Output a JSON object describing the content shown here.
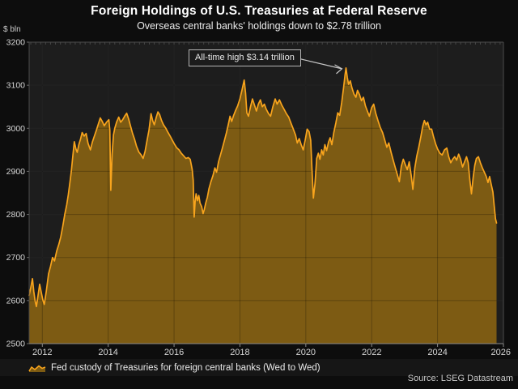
{
  "header": {
    "title": "Foreign Holdings of U.S. Treasuries at Federal Reserve",
    "subtitle": "Overseas central banks' holdings down to $2.78 trillion"
  },
  "legend": {
    "label": "Fed custody of Treasuries for foreign central banks (Wed to Wed)"
  },
  "source": "Source: LSEG Datastream",
  "chart_data": {
    "type": "area",
    "title": "Foreign Holdings of U.S. Treasuries at Federal Reserve",
    "subtitle": "Overseas central banks' holdings down to $2.78 trillion",
    "ylabel": "$ bln",
    "xlabel": "",
    "x_range": [
      2011.6,
      2026.0
    ],
    "y_range": [
      2500,
      3200
    ],
    "x_ticks": [
      2012,
      2014,
      2016,
      2018,
      2020,
      2022,
      2024,
      2026
    ],
    "y_ticks": [
      2500,
      2600,
      2700,
      2800,
      2900,
      3000,
      3100,
      3200
    ],
    "grid": true,
    "legend_position": "bottom",
    "annotation": {
      "text": "All-time high $3.14 trillion",
      "target_x": 2021.22,
      "target_y": 3140
    },
    "colors": {
      "line": "#f8a41d",
      "fill": "#7d5b13",
      "plot_bg": "#1d1d1d",
      "page_bg": "#0d0d0d",
      "grid": "#2e2e2e",
      "grid_overlay": "rgba(0,0,0,0.25)",
      "spine": "#4a4a4a",
      "axis": "#8a8a8a",
      "tick_text": "#d6d6d6",
      "arrow": "#c6c6c6"
    },
    "series": [
      {
        "name": "Fed custody of Treasuries for foreign central banks (Wed to Wed)",
        "points": [
          [
            2011.6,
            2612
          ],
          [
            2011.65,
            2630
          ],
          [
            2011.7,
            2651
          ],
          [
            2011.74,
            2622
          ],
          [
            2011.78,
            2600
          ],
          [
            2011.82,
            2586
          ],
          [
            2011.87,
            2612
          ],
          [
            2011.92,
            2638
          ],
          [
            2011.97,
            2618
          ],
          [
            2012.02,
            2600
          ],
          [
            2012.06,
            2591
          ],
          [
            2012.12,
            2622
          ],
          [
            2012.19,
            2662
          ],
          [
            2012.25,
            2680
          ],
          [
            2012.31,
            2700
          ],
          [
            2012.37,
            2692
          ],
          [
            2012.44,
            2716
          ],
          [
            2012.5,
            2730
          ],
          [
            2012.56,
            2748
          ],
          [
            2012.62,
            2772
          ],
          [
            2012.68,
            2800
          ],
          [
            2012.74,
            2822
          ],
          [
            2012.79,
            2846
          ],
          [
            2012.84,
            2876
          ],
          [
            2012.88,
            2900
          ],
          [
            2012.93,
            2938
          ],
          [
            2012.97,
            2969
          ],
          [
            2013.02,
            2952
          ],
          [
            2013.06,
            2944
          ],
          [
            2013.11,
            2962
          ],
          [
            2013.16,
            2975
          ],
          [
            2013.21,
            2990
          ],
          [
            2013.27,
            2982
          ],
          [
            2013.33,
            2988
          ],
          [
            2013.39,
            2965
          ],
          [
            2013.46,
            2950
          ],
          [
            2013.52,
            2968
          ],
          [
            2013.58,
            2982
          ],
          [
            2013.64,
            2995
          ],
          [
            2013.7,
            3010
          ],
          [
            2013.76,
            3024
          ],
          [
            2013.82,
            3016
          ],
          [
            2013.88,
            3006
          ],
          [
            2013.95,
            3014
          ],
          [
            2014.02,
            3020
          ],
          [
            2014.05,
            2995
          ],
          [
            2014.08,
            2856
          ],
          [
            2014.12,
            2940
          ],
          [
            2014.16,
            2985
          ],
          [
            2014.2,
            3000
          ],
          [
            2014.26,
            3015
          ],
          [
            2014.32,
            3026
          ],
          [
            2014.38,
            3014
          ],
          [
            2014.44,
            3020
          ],
          [
            2014.5,
            3028
          ],
          [
            2014.56,
            3035
          ],
          [
            2014.62,
            3022
          ],
          [
            2014.68,
            3005
          ],
          [
            2014.74,
            2988
          ],
          [
            2014.8,
            2975
          ],
          [
            2014.86,
            2958
          ],
          [
            2014.93,
            2945
          ],
          [
            2015.0,
            2938
          ],
          [
            2015.06,
            2930
          ],
          [
            2015.12,
            2946
          ],
          [
            2015.18,
            2972
          ],
          [
            2015.24,
            2996
          ],
          [
            2015.3,
            3034
          ],
          [
            2015.35,
            3018
          ],
          [
            2015.4,
            3008
          ],
          [
            2015.46,
            3026
          ],
          [
            2015.51,
            3038
          ],
          [
            2015.56,
            3032
          ],
          [
            2015.62,
            3018
          ],
          [
            2015.68,
            3008
          ],
          [
            2015.75,
            3000
          ],
          [
            2015.82,
            2990
          ],
          [
            2015.88,
            2982
          ],
          [
            2015.95,
            2972
          ],
          [
            2016.02,
            2962
          ],
          [
            2016.08,
            2955
          ],
          [
            2016.15,
            2950
          ],
          [
            2016.22,
            2942
          ],
          [
            2016.29,
            2936
          ],
          [
            2016.36,
            2930
          ],
          [
            2016.43,
            2932
          ],
          [
            2016.49,
            2928
          ],
          [
            2016.55,
            2905
          ],
          [
            2016.58,
            2880
          ],
          [
            2016.61,
            2794
          ],
          [
            2016.64,
            2830
          ],
          [
            2016.67,
            2848
          ],
          [
            2016.71,
            2832
          ],
          [
            2016.75,
            2844
          ],
          [
            2016.79,
            2826
          ],
          [
            2016.84,
            2818
          ],
          [
            2016.88,
            2802
          ],
          [
            2016.92,
            2812
          ],
          [
            2016.96,
            2826
          ],
          [
            2017.01,
            2840
          ],
          [
            2017.06,
            2860
          ],
          [
            2017.12,
            2876
          ],
          [
            2017.18,
            2890
          ],
          [
            2017.24,
            2908
          ],
          [
            2017.29,
            2898
          ],
          [
            2017.35,
            2922
          ],
          [
            2017.41,
            2938
          ],
          [
            2017.47,
            2955
          ],
          [
            2017.53,
            2972
          ],
          [
            2017.59,
            2990
          ],
          [
            2017.65,
            3010
          ],
          [
            2017.7,
            3028
          ],
          [
            2017.75,
            3016
          ],
          [
            2017.81,
            3030
          ],
          [
            2017.87,
            3042
          ],
          [
            2017.93,
            3052
          ],
          [
            2018.0,
            3068
          ],
          [
            2018.06,
            3088
          ],
          [
            2018.13,
            3112
          ],
          [
            2018.17,
            3082
          ],
          [
            2018.21,
            3036
          ],
          [
            2018.26,
            3028
          ],
          [
            2018.32,
            3050
          ],
          [
            2018.38,
            3068
          ],
          [
            2018.44,
            3054
          ],
          [
            2018.5,
            3040
          ],
          [
            2018.56,
            3056
          ],
          [
            2018.62,
            3066
          ],
          [
            2018.68,
            3050
          ],
          [
            2018.74,
            3056
          ],
          [
            2018.8,
            3044
          ],
          [
            2018.87,
            3034
          ],
          [
            2018.93,
            3028
          ],
          [
            2019.0,
            3050
          ],
          [
            2019.07,
            3068
          ],
          [
            2019.13,
            3056
          ],
          [
            2019.2,
            3066
          ],
          [
            2019.27,
            3054
          ],
          [
            2019.34,
            3044
          ],
          [
            2019.41,
            3034
          ],
          [
            2019.48,
            3026
          ],
          [
            2019.55,
            3012
          ],
          [
            2019.62,
            2998
          ],
          [
            2019.69,
            2984
          ],
          [
            2019.74,
            2966
          ],
          [
            2019.8,
            2976
          ],
          [
            2019.86,
            2962
          ],
          [
            2019.92,
            2950
          ],
          [
            2019.98,
            2972
          ],
          [
            2020.04,
            2998
          ],
          [
            2020.1,
            2992
          ],
          [
            2020.15,
            2972
          ],
          [
            2020.19,
            2900
          ],
          [
            2020.23,
            2838
          ],
          [
            2020.28,
            2872
          ],
          [
            2020.33,
            2930
          ],
          [
            2020.38,
            2942
          ],
          [
            2020.43,
            2928
          ],
          [
            2020.48,
            2950
          ],
          [
            2020.53,
            2938
          ],
          [
            2020.58,
            2962
          ],
          [
            2020.63,
            2948
          ],
          [
            2020.69,
            2968
          ],
          [
            2020.74,
            2978
          ],
          [
            2020.79,
            2962
          ],
          [
            2020.85,
            2990
          ],
          [
            2020.91,
            3012
          ],
          [
            2020.97,
            3036
          ],
          [
            2021.03,
            3030
          ],
          [
            2021.09,
            3060
          ],
          [
            2021.15,
            3096
          ],
          [
            2021.19,
            3124
          ],
          [
            2021.22,
            3140
          ],
          [
            2021.26,
            3118
          ],
          [
            2021.3,
            3102
          ],
          [
            2021.35,
            3110
          ],
          [
            2021.4,
            3094
          ],
          [
            2021.46,
            3080
          ],
          [
            2021.52,
            3072
          ],
          [
            2021.57,
            3088
          ],
          [
            2021.63,
            3078
          ],
          [
            2021.69,
            3064
          ],
          [
            2021.75,
            3072
          ],
          [
            2021.81,
            3052
          ],
          [
            2021.87,
            3040
          ],
          [
            2021.93,
            3028
          ],
          [
            2022.0,
            3048
          ],
          [
            2022.06,
            3056
          ],
          [
            2022.12,
            3036
          ],
          [
            2022.19,
            3018
          ],
          [
            2022.26,
            3002
          ],
          [
            2022.33,
            2990
          ],
          [
            2022.4,
            2972
          ],
          [
            2022.46,
            2956
          ],
          [
            2022.52,
            2966
          ],
          [
            2022.59,
            2944
          ],
          [
            2022.66,
            2924
          ],
          [
            2022.72,
            2908
          ],
          [
            2022.78,
            2892
          ],
          [
            2022.84,
            2876
          ],
          [
            2022.9,
            2912
          ],
          [
            2022.96,
            2928
          ],
          [
            2023.02,
            2916
          ],
          [
            2023.08,
            2904
          ],
          [
            2023.14,
            2922
          ],
          [
            2023.2,
            2890
          ],
          [
            2023.25,
            2858
          ],
          [
            2023.31,
            2908
          ],
          [
            2023.37,
            2936
          ],
          [
            2023.43,
            2956
          ],
          [
            2023.49,
            2980
          ],
          [
            2023.55,
            3005
          ],
          [
            2023.6,
            3018
          ],
          [
            2023.65,
            3008
          ],
          [
            2023.7,
            3014
          ],
          [
            2023.76,
            2998
          ],
          [
            2023.82,
            2998
          ],
          [
            2023.88,
            2980
          ],
          [
            2023.94,
            2964
          ],
          [
            2024.0,
            2952
          ],
          [
            2024.07,
            2942
          ],
          [
            2024.14,
            2938
          ],
          [
            2024.21,
            2950
          ],
          [
            2024.28,
            2954
          ],
          [
            2024.34,
            2934
          ],
          [
            2024.4,
            2920
          ],
          [
            2024.46,
            2928
          ],
          [
            2024.52,
            2934
          ],
          [
            2024.58,
            2926
          ],
          [
            2024.64,
            2940
          ],
          [
            2024.7,
            2928
          ],
          [
            2024.76,
            2910
          ],
          [
            2024.82,
            2922
          ],
          [
            2024.88,
            2934
          ],
          [
            2024.93,
            2920
          ],
          [
            2024.98,
            2880
          ],
          [
            2025.03,
            2848
          ],
          [
            2025.08,
            2886
          ],
          [
            2025.13,
            2914
          ],
          [
            2025.18,
            2930
          ],
          [
            2025.24,
            2934
          ],
          [
            2025.3,
            2920
          ],
          [
            2025.36,
            2908
          ],
          [
            2025.42,
            2898
          ],
          [
            2025.48,
            2888
          ],
          [
            2025.53,
            2874
          ],
          [
            2025.58,
            2888
          ],
          [
            2025.63,
            2870
          ],
          [
            2025.68,
            2852
          ],
          [
            2025.72,
            2820
          ],
          [
            2025.76,
            2790
          ],
          [
            2025.79,
            2780
          ]
        ]
      }
    ]
  }
}
